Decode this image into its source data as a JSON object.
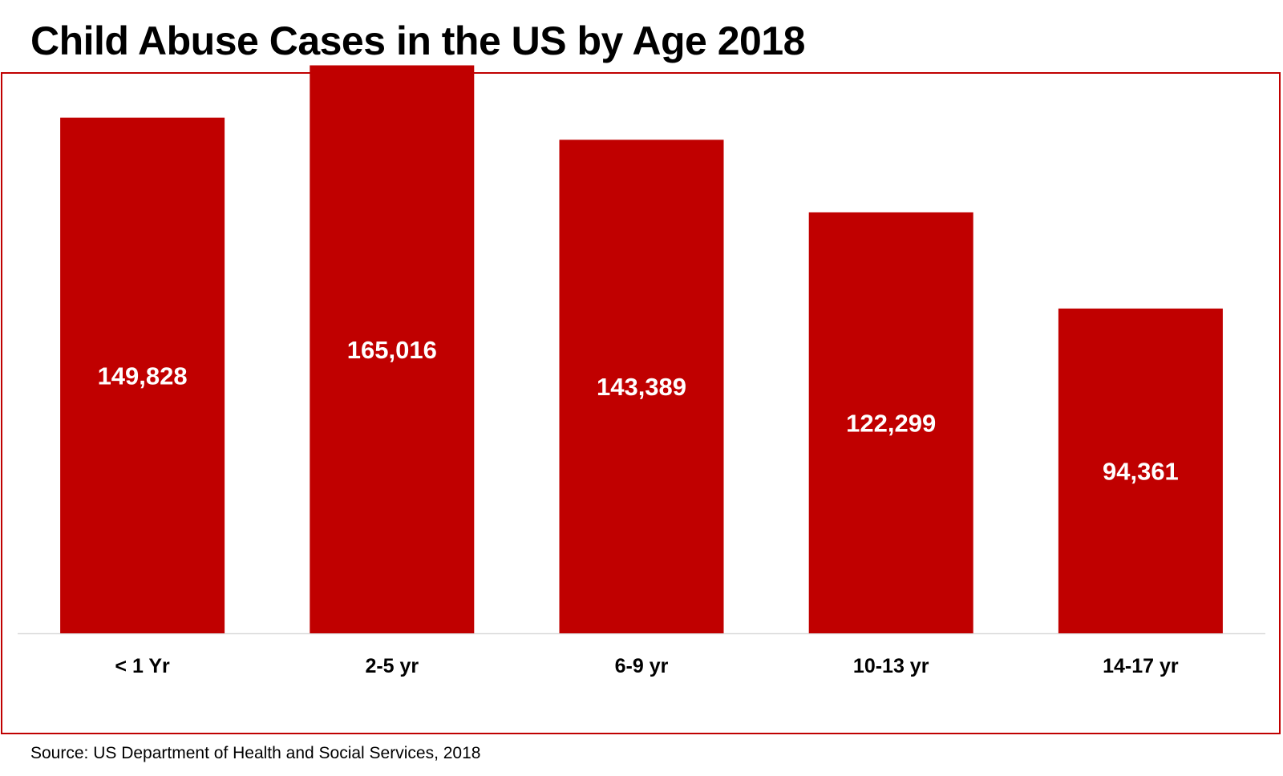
{
  "title": "Child Abuse Cases in the US by Age 2018",
  "source": "Source: US Department of Health and Social Services, 2018",
  "colors": {
    "bar": "#c00000",
    "frame": "#c00000",
    "baseline": "#d9d9d9",
    "data_label": "#ffffff",
    "text": "#000000"
  },
  "chart_data": {
    "type": "bar",
    "title": "Child Abuse Cases in the US by Age 2018",
    "xlabel": "",
    "ylabel": "",
    "categories": [
      "< 1 Yr",
      "2-5 yr",
      "6-9 yr",
      "10-13 yr",
      "14-17 yr"
    ],
    "values": [
      149828,
      165016,
      143389,
      122299,
      94361
    ],
    "data_labels": [
      "149,828",
      "165,016",
      "143,389",
      "122,299",
      "94,361"
    ],
    "ylim": [
      0,
      184000
    ],
    "grid": false,
    "legend": "none",
    "value_axis_shown": false
  }
}
